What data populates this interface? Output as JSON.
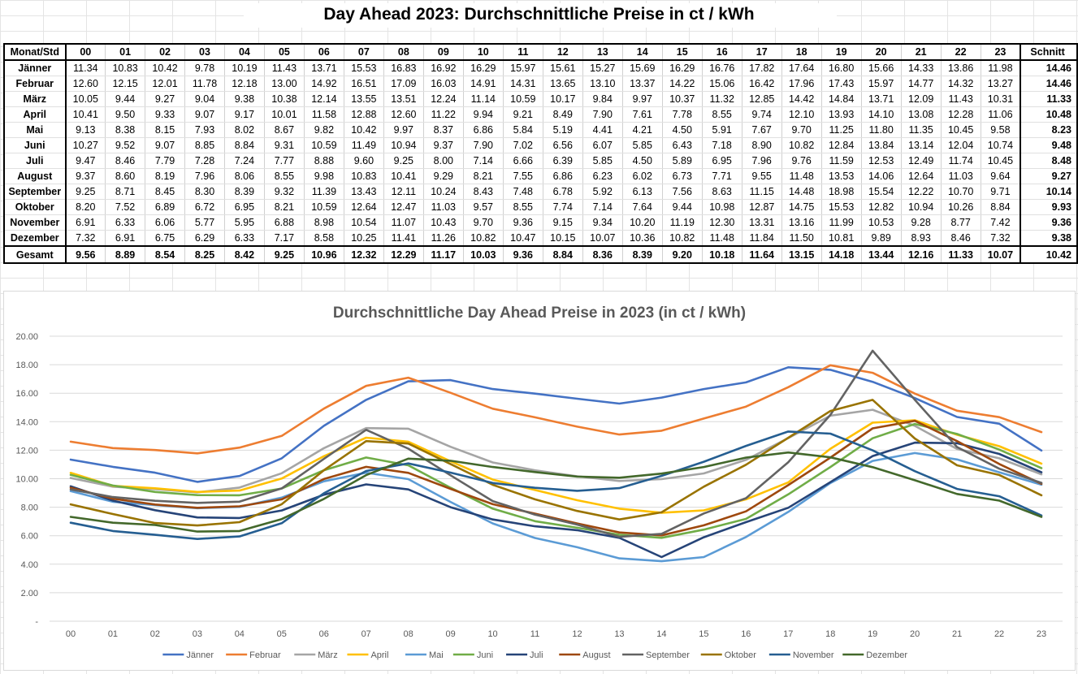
{
  "sheet_title": "Day Ahead 2023: Durchschnittliche Preise in ct / kWh",
  "table": {
    "corner_header": "Monat/Std",
    "hours": [
      "00",
      "01",
      "02",
      "03",
      "04",
      "05",
      "06",
      "07",
      "08",
      "09",
      "10",
      "11",
      "12",
      "13",
      "14",
      "15",
      "16",
      "17",
      "18",
      "19",
      "20",
      "21",
      "22",
      "23"
    ],
    "avg_header": "Schnitt",
    "rows": [
      {
        "month": "Jänner",
        "values": [
          "11.34",
          "10.83",
          "10.42",
          "9.78",
          "10.19",
          "11.43",
          "13.71",
          "15.53",
          "16.83",
          "16.92",
          "16.29",
          "15.97",
          "15.61",
          "15.27",
          "15.69",
          "16.29",
          "16.76",
          "17.82",
          "17.64",
          "16.80",
          "15.66",
          "14.33",
          "13.86",
          "11.98"
        ],
        "avg": "14.46"
      },
      {
        "month": "Februar",
        "values": [
          "12.60",
          "12.15",
          "12.01",
          "11.78",
          "12.18",
          "13.00",
          "14.92",
          "16.51",
          "17.09",
          "16.03",
          "14.91",
          "14.31",
          "13.65",
          "13.10",
          "13.37",
          "14.22",
          "15.06",
          "16.42",
          "17.96",
          "17.43",
          "15.97",
          "14.77",
          "14.32",
          "13.27"
        ],
        "avg": "14.46"
      },
      {
        "month": "März",
        "values": [
          "10.05",
          "9.44",
          "9.27",
          "9.04",
          "9.38",
          "10.38",
          "12.14",
          "13.55",
          "13.51",
          "12.24",
          "11.14",
          "10.59",
          "10.17",
          "9.84",
          "9.97",
          "10.37",
          "11.32",
          "12.85",
          "14.42",
          "14.84",
          "13.71",
          "12.09",
          "11.43",
          "10.31"
        ],
        "avg": "11.33"
      },
      {
        "month": "April",
        "values": [
          "10.41",
          "9.50",
          "9.33",
          "9.07",
          "9.17",
          "10.01",
          "11.58",
          "12.88",
          "12.60",
          "11.22",
          "9.94",
          "9.21",
          "8.49",
          "7.90",
          "7.61",
          "7.78",
          "8.55",
          "9.74",
          "12.10",
          "13.93",
          "14.10",
          "13.08",
          "12.28",
          "11.06"
        ],
        "avg": "10.48"
      },
      {
        "month": "Mai",
        "values": [
          "9.13",
          "8.38",
          "8.15",
          "7.93",
          "8.02",
          "8.67",
          "9.82",
          "10.42",
          "9.97",
          "8.37",
          "6.86",
          "5.84",
          "5.19",
          "4.41",
          "4.21",
          "4.50",
          "5.91",
          "7.67",
          "9.70",
          "11.25",
          "11.80",
          "11.35",
          "10.45",
          "9.58"
        ],
        "avg": "8.23"
      },
      {
        "month": "Juni",
        "values": [
          "10.27",
          "9.52",
          "9.07",
          "8.85",
          "8.84",
          "9.31",
          "10.59",
          "11.49",
          "10.94",
          "9.37",
          "7.90",
          "7.02",
          "6.56",
          "6.07",
          "5.85",
          "6.43",
          "7.18",
          "8.90",
          "10.82",
          "12.84",
          "13.84",
          "13.14",
          "12.04",
          "10.74"
        ],
        "avg": "9.48"
      },
      {
        "month": "Juli",
        "values": [
          "9.47",
          "8.46",
          "7.79",
          "7.28",
          "7.24",
          "7.77",
          "8.88",
          "9.60",
          "9.25",
          "8.00",
          "7.14",
          "6.66",
          "6.39",
          "5.85",
          "4.50",
          "5.89",
          "6.95",
          "7.96",
          "9.76",
          "11.59",
          "12.53",
          "12.49",
          "11.74",
          "10.45"
        ],
        "avg": "8.48"
      },
      {
        "month": "August",
        "values": [
          "9.37",
          "8.60",
          "8.19",
          "7.96",
          "8.06",
          "8.55",
          "9.98",
          "10.83",
          "10.41",
          "9.29",
          "8.21",
          "7.55",
          "6.86",
          "6.23",
          "6.02",
          "6.73",
          "7.71",
          "9.55",
          "11.48",
          "13.53",
          "14.06",
          "12.64",
          "11.03",
          "9.64"
        ],
        "avg": "9.27"
      },
      {
        "month": "September",
        "values": [
          "9.25",
          "8.71",
          "8.45",
          "8.30",
          "8.39",
          "9.32",
          "11.39",
          "13.43",
          "12.11",
          "10.24",
          "8.43",
          "7.48",
          "6.78",
          "5.92",
          "6.13",
          "7.56",
          "8.63",
          "11.15",
          "14.48",
          "18.98",
          "15.54",
          "12.22",
          "10.70",
          "9.71"
        ],
        "avg": "10.14"
      },
      {
        "month": "Oktober",
        "values": [
          "8.20",
          "7.52",
          "6.89",
          "6.72",
          "6.95",
          "8.21",
          "10.59",
          "12.64",
          "12.47",
          "11.03",
          "9.57",
          "8.55",
          "7.74",
          "7.14",
          "7.64",
          "9.44",
          "10.98",
          "12.87",
          "14.75",
          "15.53",
          "12.82",
          "10.94",
          "10.26",
          "8.84"
        ],
        "avg": "9.93"
      },
      {
        "month": "November",
        "values": [
          "6.91",
          "6.33",
          "6.06",
          "5.77",
          "5.95",
          "6.88",
          "8.98",
          "10.54",
          "11.07",
          "10.43",
          "9.70",
          "9.36",
          "9.15",
          "9.34",
          "10.20",
          "11.19",
          "12.30",
          "13.31",
          "13.16",
          "11.99",
          "10.53",
          "9.28",
          "8.77",
          "7.42"
        ],
        "avg": "9.36"
      },
      {
        "month": "Dezember",
        "values": [
          "7.32",
          "6.91",
          "6.75",
          "6.29",
          "6.33",
          "7.17",
          "8.58",
          "10.25",
          "11.41",
          "11.26",
          "10.82",
          "10.47",
          "10.15",
          "10.07",
          "10.36",
          "10.82",
          "11.48",
          "11.84",
          "11.50",
          "10.81",
          "9.89",
          "8.93",
          "8.46",
          "7.32"
        ],
        "avg": "9.38"
      }
    ],
    "total": {
      "label": "Gesamt",
      "values": [
        "9.56",
        "8.89",
        "8.54",
        "8.25",
        "8.42",
        "9.25",
        "10.96",
        "12.32",
        "12.29",
        "11.17",
        "10.03",
        "9.36",
        "8.84",
        "8.36",
        "8.39",
        "9.20",
        "10.18",
        "11.64",
        "13.15",
        "14.18",
        "13.44",
        "12.16",
        "11.33",
        "10.07"
      ],
      "avg": "10.42"
    }
  },
  "chart_data": {
    "type": "line",
    "title": "Durchschnittliche Day Ahead Preise in 2023 (in ct / kWh)",
    "xlabel": "",
    "ylabel": "",
    "categories": [
      "00",
      "01",
      "02",
      "03",
      "04",
      "05",
      "06",
      "07",
      "08",
      "09",
      "10",
      "11",
      "12",
      "13",
      "14",
      "15",
      "16",
      "17",
      "18",
      "19",
      "20",
      "21",
      "22",
      "23"
    ],
    "ylim": [
      0,
      20
    ],
    "y_ticks": [
      0,
      2,
      4,
      6,
      8,
      10,
      12,
      14,
      16,
      18,
      20
    ],
    "y_tick_labels": [
      "-",
      "2.00",
      "4.00",
      "6.00",
      "8.00",
      "10.00",
      "12.00",
      "14.00",
      "16.00",
      "18.00",
      "20.00"
    ],
    "grid": true,
    "legend_position": "bottom",
    "series": [
      {
        "name": "Jänner",
        "color": "#4472c4",
        "values": [
          11.34,
          10.83,
          10.42,
          9.78,
          10.19,
          11.43,
          13.71,
          15.53,
          16.83,
          16.92,
          16.29,
          15.97,
          15.61,
          15.27,
          15.69,
          16.29,
          16.76,
          17.82,
          17.64,
          16.8,
          15.66,
          14.33,
          13.86,
          11.98
        ]
      },
      {
        "name": "Februar",
        "color": "#ed7d31",
        "values": [
          12.6,
          12.15,
          12.01,
          11.78,
          12.18,
          13.0,
          14.92,
          16.51,
          17.09,
          16.03,
          14.91,
          14.31,
          13.65,
          13.1,
          13.37,
          14.22,
          15.06,
          16.42,
          17.96,
          17.43,
          15.97,
          14.77,
          14.32,
          13.27
        ]
      },
      {
        "name": "März",
        "color": "#a5a5a5",
        "values": [
          10.05,
          9.44,
          9.27,
          9.04,
          9.38,
          10.38,
          12.14,
          13.55,
          13.51,
          12.24,
          11.14,
          10.59,
          10.17,
          9.84,
          9.97,
          10.37,
          11.32,
          12.85,
          14.42,
          14.84,
          13.71,
          12.09,
          11.43,
          10.31
        ]
      },
      {
        "name": "April",
        "color": "#ffc000",
        "values": [
          10.41,
          9.5,
          9.33,
          9.07,
          9.17,
          10.01,
          11.58,
          12.88,
          12.6,
          11.22,
          9.94,
          9.21,
          8.49,
          7.9,
          7.61,
          7.78,
          8.55,
          9.74,
          12.1,
          13.93,
          14.1,
          13.08,
          12.28,
          11.06
        ]
      },
      {
        "name": "Mai",
        "color": "#5b9bd5",
        "values": [
          9.13,
          8.38,
          8.15,
          7.93,
          8.02,
          8.67,
          9.82,
          10.42,
          9.97,
          8.37,
          6.86,
          5.84,
          5.19,
          4.41,
          4.21,
          4.5,
          5.91,
          7.67,
          9.7,
          11.25,
          11.8,
          11.35,
          10.45,
          9.58
        ]
      },
      {
        "name": "Juni",
        "color": "#70ad47",
        "values": [
          10.27,
          9.52,
          9.07,
          8.85,
          8.84,
          9.31,
          10.59,
          11.49,
          10.94,
          9.37,
          7.9,
          7.02,
          6.56,
          6.07,
          5.85,
          6.43,
          7.18,
          8.9,
          10.82,
          12.84,
          13.84,
          13.14,
          12.04,
          10.74
        ]
      },
      {
        "name": "Juli",
        "color": "#264478",
        "values": [
          9.47,
          8.46,
          7.79,
          7.28,
          7.24,
          7.77,
          8.88,
          9.6,
          9.25,
          8.0,
          7.14,
          6.66,
          6.39,
          5.85,
          4.5,
          5.89,
          6.95,
          7.96,
          9.76,
          11.59,
          12.53,
          12.49,
          11.74,
          10.45
        ]
      },
      {
        "name": "August",
        "color": "#9e480e",
        "values": [
          9.37,
          8.6,
          8.19,
          7.96,
          8.06,
          8.55,
          9.98,
          10.83,
          10.41,
          9.29,
          8.21,
          7.55,
          6.86,
          6.23,
          6.02,
          6.73,
          7.71,
          9.55,
          11.48,
          13.53,
          14.06,
          12.64,
          11.03,
          9.64
        ]
      },
      {
        "name": "September",
        "color": "#636363",
        "values": [
          9.25,
          8.71,
          8.45,
          8.3,
          8.39,
          9.32,
          11.39,
          13.43,
          12.11,
          10.24,
          8.43,
          7.48,
          6.78,
          5.92,
          6.13,
          7.56,
          8.63,
          11.15,
          14.48,
          18.98,
          15.54,
          12.22,
          10.7,
          9.71
        ]
      },
      {
        "name": "Oktober",
        "color": "#997300",
        "values": [
          8.2,
          7.52,
          6.89,
          6.72,
          6.95,
          8.21,
          10.59,
          12.64,
          12.47,
          11.03,
          9.57,
          8.55,
          7.74,
          7.14,
          7.64,
          9.44,
          10.98,
          12.87,
          14.75,
          15.53,
          12.82,
          10.94,
          10.26,
          8.84
        ]
      },
      {
        "name": "November",
        "color": "#255e91",
        "values": [
          6.91,
          6.33,
          6.06,
          5.77,
          5.95,
          6.88,
          8.98,
          10.54,
          11.07,
          10.43,
          9.7,
          9.36,
          9.15,
          9.34,
          10.2,
          11.19,
          12.3,
          13.31,
          13.16,
          11.99,
          10.53,
          9.28,
          8.77,
          7.42
        ]
      },
      {
        "name": "Dezember",
        "color": "#43682b",
        "values": [
          7.32,
          6.91,
          6.75,
          6.29,
          6.33,
          7.17,
          8.58,
          10.25,
          11.41,
          11.26,
          10.82,
          10.47,
          10.15,
          10.07,
          10.36,
          10.82,
          11.48,
          11.84,
          11.5,
          10.81,
          9.89,
          8.93,
          8.46,
          7.32
        ]
      }
    ]
  }
}
